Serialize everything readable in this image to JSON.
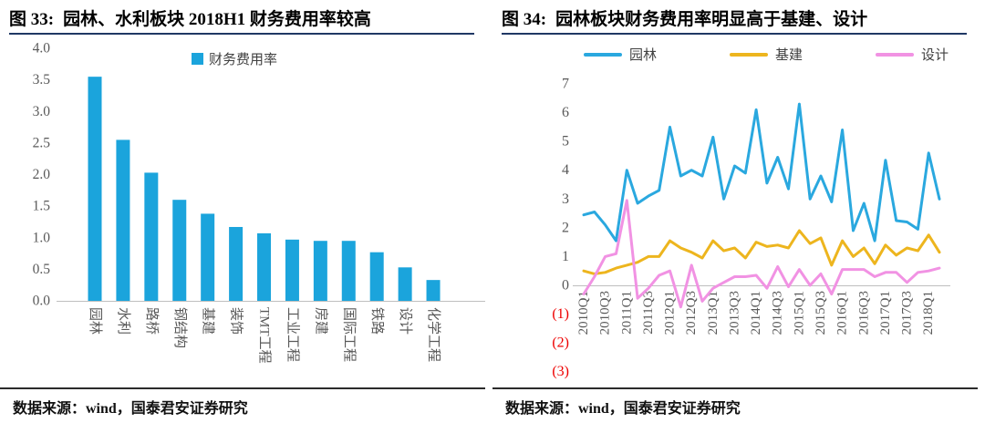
{
  "panels": [
    {
      "figure_label": "图 33:",
      "title": "园林、水利板块 2018H1 财务费用率较高",
      "legend": [
        {
          "label": "财务费用率",
          "color": "#1ba4dc",
          "swatch": "square"
        }
      ],
      "source": "数据来源：wind，国泰君安证券研究"
    },
    {
      "figure_label": "图 34:",
      "title": "园林板块财务费用率明显高于基建、设计",
      "legend": [
        {
          "label": "园林",
          "color": "#2aa8df",
          "swatch": "line"
        },
        {
          "label": "基建",
          "color": "#edb51e",
          "swatch": "line"
        },
        {
          "label": "设计",
          "color": "#f192e3",
          "swatch": "line"
        }
      ],
      "source": "数据来源：wind，国泰君安证券研究"
    }
  ],
  "colors": {
    "bar_blue": "#1ba4dc",
    "line_blue": "#2aa8df",
    "line_yellow": "#edb51e",
    "line_pink": "#f192e3",
    "axis_gray": "#bfbfbf",
    "tick_gray": "#595959",
    "negative_red": "#ee0000",
    "title_rule_navy": "#1f3864"
  },
  "chart_data": [
    {
      "type": "bar",
      "title": "园林、水利板块 2018H1 财务费用率较高",
      "legend": [
        "财务费用率"
      ],
      "legend_position": "top",
      "categories": [
        "园林",
        "水利",
        "路桥",
        "钢结构",
        "基建",
        "装饰",
        "TMT工程",
        "工业工程",
        "房建",
        "国际工程",
        "铁路",
        "设计",
        "化学工程"
      ],
      "values": [
        3.55,
        2.55,
        2.03,
        1.6,
        1.38,
        1.17,
        1.07,
        0.97,
        0.95,
        0.95,
        0.77,
        0.53,
        0.33
      ],
      "xlabel": "",
      "ylabel": "",
      "ylim": [
        0,
        4
      ],
      "ytick_step": 0.5,
      "grid": false,
      "bar_color": "#1ba4dc"
    },
    {
      "type": "line",
      "title": "园林板块财务费用率明显高于基建、设计",
      "legend_position": "top",
      "x": [
        "2010Q1",
        "2010Q2",
        "2010Q3",
        "2010Q4",
        "2011Q1",
        "2011Q2",
        "2011Q3",
        "2011Q4",
        "2012Q1",
        "2012Q2",
        "2012Q3",
        "2012Q4",
        "2013Q1",
        "2013Q2",
        "2013Q3",
        "2013Q4",
        "2014Q1",
        "2014Q2",
        "2014Q3",
        "2014Q4",
        "2015Q1",
        "2015Q2",
        "2015Q3",
        "2015Q4",
        "2016Q1",
        "2016Q2",
        "2016Q3",
        "2016Q4",
        "2017Q1",
        "2017Q2",
        "2017Q3",
        "2017Q4",
        "2018Q1",
        "2018Q2"
      ],
      "x_tick_interval": 2,
      "x_tick_labels": [
        "2010Q1",
        "2010Q3",
        "2011Q1",
        "2011Q3",
        "2012Q1",
        "2012Q3",
        "2013Q1",
        "2013Q3",
        "2014Q1",
        "2014Q3",
        "2015Q1",
        "2015Q3",
        "2016Q1",
        "2016Q3",
        "2017Q1",
        "2017Q3",
        "2018Q1"
      ],
      "series": [
        {
          "name": "园林",
          "color": "#2aa8df",
          "values": [
            2.45,
            2.55,
            2.1,
            1.55,
            4.0,
            2.85,
            3.1,
            3.3,
            5.5,
            3.8,
            4.0,
            3.8,
            5.15,
            3.0,
            4.15,
            3.9,
            6.1,
            3.55,
            4.45,
            3.35,
            6.3,
            3.0,
            3.8,
            2.9,
            5.4,
            1.9,
            2.85,
            1.55,
            4.35,
            2.25,
            2.2,
            1.95,
            4.6,
            3.0
          ]
        },
        {
          "name": "基建",
          "color": "#edb51e",
          "values": [
            0.5,
            0.4,
            0.45,
            0.6,
            0.7,
            0.8,
            1.0,
            1.0,
            1.55,
            1.3,
            1.15,
            0.95,
            1.55,
            1.2,
            1.3,
            0.95,
            1.5,
            1.35,
            1.4,
            1.3,
            1.9,
            1.45,
            1.65,
            0.7,
            1.55,
            1.0,
            1.3,
            0.75,
            1.4,
            1.05,
            1.3,
            1.2,
            1.75,
            1.15
          ]
        },
        {
          "name": "设计",
          "color": "#f192e3",
          "values": [
            -0.3,
            0.3,
            1.0,
            1.1,
            2.95,
            -0.45,
            -0.1,
            0.35,
            0.5,
            -0.75,
            0.7,
            -0.55,
            -0.1,
            0.1,
            0.3,
            0.3,
            0.35,
            -0.1,
            0.65,
            -0.05,
            0.55,
            0.0,
            0.4,
            -0.3,
            0.55,
            0.55,
            0.55,
            0.3,
            0.45,
            0.45,
            0.1,
            0.45,
            0.5,
            0.6
          ]
        }
      ],
      "xlabel": "",
      "ylabel": "",
      "ylim": [
        -3,
        7
      ],
      "ytick_step": 1,
      "negative_tick_format": "parentheses-red",
      "grid": false
    }
  ]
}
